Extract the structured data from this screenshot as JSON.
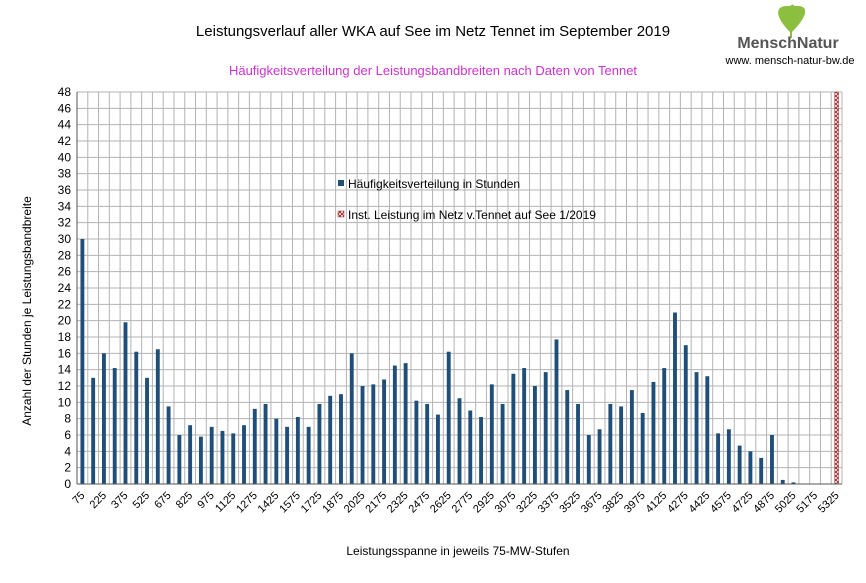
{
  "branding": {
    "name_left": "Mensch",
    "name_right": "Natur",
    "url": "www. mensch-natur-bw.de",
    "leaf_color": "#8cbf3f",
    "text_color": "#555555"
  },
  "colors": {
    "bar": "#1f4e79",
    "subtitle": "#cc33cc",
    "grid": "#b3b3b3",
    "marker": "#a03030"
  },
  "chart_data": {
    "type": "bar",
    "title": "Leistungsverlauf aller WKA auf See im Netz Tennet im September 2019",
    "subtitle": "Häufigkeitsverteilung der Leistungsbandbreiten nach Daten von Tennet",
    "xlabel": "Leistungsspanne in jeweils 75-MW-Stufen",
    "ylabel": "Anzahl der Stunden je Leistungsbandbreite",
    "ylim": [
      0,
      48
    ],
    "ytick_step": 2,
    "grid": true,
    "legend_position": "center-left",
    "categories": [
      75,
      150,
      225,
      300,
      375,
      450,
      525,
      600,
      675,
      750,
      825,
      900,
      975,
      1050,
      1125,
      1200,
      1275,
      1350,
      1425,
      1500,
      1575,
      1650,
      1725,
      1800,
      1875,
      1950,
      2025,
      2100,
      2175,
      2250,
      2325,
      2400,
      2475,
      2550,
      2625,
      2700,
      2775,
      2850,
      2925,
      3000,
      3075,
      3150,
      3225,
      3300,
      3375,
      3450,
      3525,
      3600,
      3675,
      3750,
      3825,
      3900,
      3975,
      4050,
      4125,
      4200,
      4275,
      4350,
      4425,
      4500,
      4575,
      4650,
      4725,
      4800,
      4875,
      4950,
      5025,
      5100,
      5175,
      5250,
      5325
    ],
    "tick_labels": [
      "75",
      "225",
      "375",
      "525",
      "675",
      "825",
      "975",
      "1125",
      "1275",
      "1425",
      "1575",
      "1725",
      "1875",
      "2025",
      "2175",
      "2325",
      "2475",
      "2625",
      "2775",
      "2925",
      "3075",
      "3225",
      "3375",
      "3525",
      "3675",
      "3825",
      "3975",
      "4125",
      "4275",
      "4425",
      "4575",
      "4725",
      "4875",
      "5025",
      "5175",
      "5325"
    ],
    "series": [
      {
        "name": "Häufigkeitsverteilung in Stunden",
        "values": [
          30,
          13,
          16,
          14.2,
          19.8,
          16.2,
          13,
          16.5,
          9.5,
          6,
          7.2,
          5.8,
          7,
          6.5,
          6.2,
          7.2,
          9.2,
          9.8,
          8,
          7,
          8.2,
          7,
          9.8,
          10.8,
          11,
          16,
          12,
          12.2,
          12.8,
          14.5,
          14.8,
          10.2,
          9.8,
          8.5,
          16.2,
          10.5,
          9,
          8.2,
          12.2,
          9.8,
          13.5,
          14.2,
          12,
          13.7,
          17.7,
          11.5,
          9.8,
          6,
          6.7,
          9.8,
          9.5,
          11.5,
          8.7,
          12.5,
          14.2,
          21,
          17,
          13.7,
          13.2,
          6.2,
          6.7,
          4.7,
          4,
          3.2,
          6,
          0.5,
          0.2,
          0,
          0,
          0,
          0
        ]
      },
      {
        "name": "Inst. Leistung im Netz v.Tennet auf See 1/2019",
        "marker_at": 5325,
        "value": 48
      }
    ]
  }
}
